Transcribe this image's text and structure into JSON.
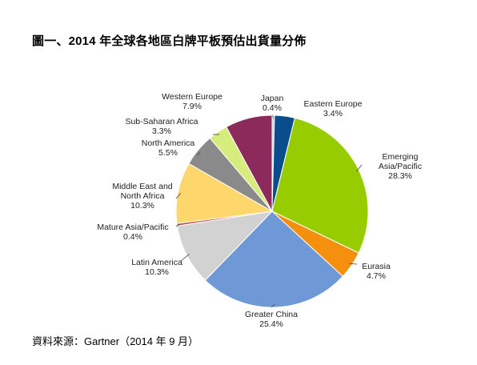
{
  "title": "圖一、2014 年全球各地區白牌平板預估出貨量分佈",
  "source": "資料來源：Gartner（2014 年 9 月）",
  "chart_data": {
    "type": "pie",
    "title": "",
    "slices": [
      {
        "label": [
          "Japan"
        ],
        "pct_label": "0.4%",
        "value": 0.4,
        "color": "#c8cdd2"
      },
      {
        "label": [
          "Eastern Europe"
        ],
        "pct_label": "3.4%",
        "value": 3.4,
        "color": "#0a4d8c"
      },
      {
        "label": [
          "Emerging",
          "Asia/Pacific"
        ],
        "pct_label": "28.3%",
        "value": 28.3,
        "color": "#96cc00"
      },
      {
        "label": [
          "Eurasia"
        ],
        "pct_label": "4.7%",
        "value": 4.7,
        "color": "#f5900e"
      },
      {
        "label": [
          "Greater China"
        ],
        "pct_label": "25.4%",
        "value": 25.4,
        "color": "#6f98d6"
      },
      {
        "label": [
          "Latin America"
        ],
        "pct_label": "10.3%",
        "value": 10.3,
        "color": "#d2d2d2"
      },
      {
        "label": [
          "Mature Asia/Pacific"
        ],
        "pct_label": "0.4%",
        "value": 0.4,
        "color": "#c0504d"
      },
      {
        "label": [
          "Middle East and",
          "North Africa"
        ],
        "pct_label": "10.3%",
        "value": 10.3,
        "color": "#fdd76b"
      },
      {
        "label": [
          "North America"
        ],
        "pct_label": "5.5%",
        "value": 5.5,
        "color": "#8a8a8a"
      },
      {
        "label": [
          "Sub-Saharan Africa"
        ],
        "pct_label": "3.3%",
        "value": 3.3,
        "color": "#d6ec7c"
      },
      {
        "label": [
          "Western Europe"
        ],
        "pct_label": "7.9%",
        "value": 7.9,
        "color": "#8c2a5c"
      }
    ],
    "start_angle_deg": 0,
    "direction": "clockwise"
  }
}
